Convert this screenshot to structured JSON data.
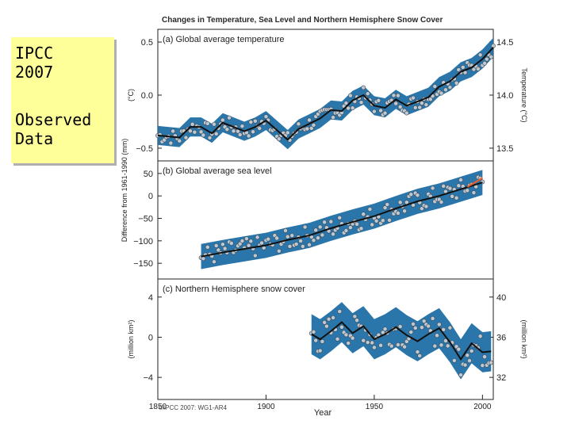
{
  "slide": {
    "label_lines": [
      "IPCC",
      "2007",
      "",
      "Observed",
      "Data"
    ]
  },
  "figure": {
    "title": "Changes in Temperature, Sea Level and Northern Hemisphere Snow Cover",
    "xlabel": "Year",
    "copyright": "©IPCC 2007: WG1-AR4",
    "shared_ylabel": "Difference from 1961-1990 (mm)"
  },
  "colors": {
    "band": "#1f6fa5",
    "line": "#111111",
    "circle_fill": "#bfc7cf",
    "circle_stroke": "#3a4a5a",
    "accent": "#e06030"
  },
  "chart_data": [
    {
      "type": "line",
      "panel_label": "(a) Global average temperature",
      "ylabel": "(°C)",
      "ylabel_right": "Temperature (°C)",
      "xlim": [
        1850,
        2005
      ],
      "ylim": [
        -0.62,
        0.62
      ],
      "yticks": [
        -0.5,
        0.0,
        0.5
      ],
      "ytick_labels": [
        "−0.5",
        "0.0",
        "0.5"
      ],
      "right_ticks": [
        -0.5,
        0.0,
        0.5
      ],
      "right_tick_labels": [
        "13.5",
        "14.0",
        "14.5"
      ],
      "x": [
        1850,
        1860,
        1865,
        1870,
        1875,
        1880,
        1885,
        1890,
        1895,
        1900,
        1905,
        1910,
        1915,
        1920,
        1925,
        1930,
        1935,
        1940,
        1945,
        1950,
        1955,
        1960,
        1965,
        1970,
        1975,
        1980,
        1985,
        1990,
        1995,
        2000,
        2005
      ],
      "values": [
        -0.38,
        -0.4,
        -0.3,
        -0.3,
        -0.36,
        -0.26,
        -0.3,
        -0.34,
        -0.3,
        -0.24,
        -0.33,
        -0.42,
        -0.32,
        -0.27,
        -0.22,
        -0.14,
        -0.15,
        -0.05,
        0.0,
        -0.1,
        -0.12,
        -0.04,
        -0.1,
        -0.06,
        -0.02,
        0.08,
        0.13,
        0.22,
        0.26,
        0.34,
        0.45
      ],
      "band_halfwidth": 0.09
    },
    {
      "type": "line",
      "panel_label": "(b) Global average sea level",
      "ylabel": "",
      "xlim": [
        1850,
        2005
      ],
      "ylim": [
        -185,
        78
      ],
      "yticks": [
        -150,
        -100,
        -50,
        0,
        50
      ],
      "ytick_labels": [
        "−150",
        "−100",
        "−50",
        "0",
        "50"
      ],
      "x": [
        1870,
        1880,
        1890,
        1900,
        1910,
        1920,
        1930,
        1940,
        1950,
        1960,
        1970,
        1980,
        1990,
        2000
      ],
      "values": [
        -135,
        -126,
        -118,
        -110,
        -98,
        -88,
        -72,
        -58,
        -45,
        -28,
        -12,
        0,
        15,
        30
      ],
      "band_halfwidth": 28,
      "satellite_series": {
        "x": [
          1993,
          2000
        ],
        "values": [
          20,
          40
        ]
      }
    },
    {
      "type": "line",
      "panel_label": "(c) Northern Hemisphere snow cover",
      "ylabel": "(million km²)",
      "ylabel_right": "(million km²)",
      "xlim": [
        1850,
        2005
      ],
      "ylim": [
        -6.2,
        5.8
      ],
      "yticks": [
        -4,
        0,
        4
      ],
      "ytick_labels": [
        "−4",
        "0",
        "4"
      ],
      "right_ticks": [
        -4,
        0,
        4
      ],
      "right_tick_labels": [
        "32",
        "36",
        "40"
      ],
      "x": [
        1921,
        1925,
        1930,
        1935,
        1940,
        1945,
        1950,
        1955,
        1960,
        1965,
        1970,
        1975,
        1980,
        1985,
        1990,
        1995,
        2000,
        2004
      ],
      "values": [
        0.3,
        -0.2,
        0.6,
        1.5,
        0.4,
        1.1,
        -0.2,
        0.3,
        1.0,
        0.2,
        -0.4,
        0.3,
        0.9,
        -0.5,
        -2.2,
        -0.6,
        -1.5,
        -1.4
      ],
      "band_halfwidth": 2.0
    }
  ],
  "xaxis": {
    "ticks": [
      1850,
      1900,
      1950,
      2000
    ],
    "tick_labels": [
      "1850",
      "1900",
      "1950",
      "2000"
    ]
  }
}
